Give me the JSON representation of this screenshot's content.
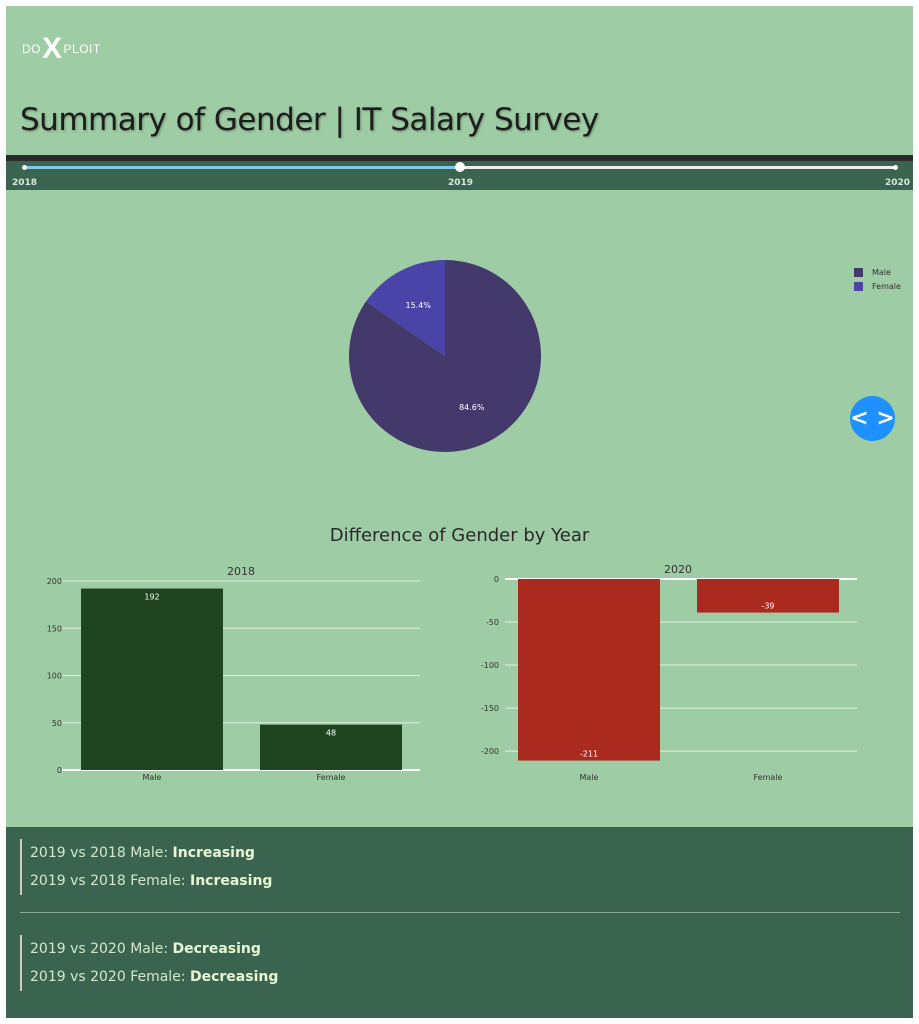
{
  "logo": {
    "left": "DO",
    "mid": "X",
    "right": "PLOIT"
  },
  "title": "Summary of Gender | IT Salary Survey",
  "slider": {
    "ticks": [
      "2018",
      "2019",
      "2020"
    ],
    "selected": "2019"
  },
  "nav_button": {
    "icon": "code-chevrons-icon",
    "label": "< >"
  },
  "subtitle": "Difference of Gender by Year",
  "colors": {
    "male": "#433a6b",
    "female": "#4b44a8",
    "increase": "#1f4420",
    "decrease": "#ab2a1f",
    "background": "#9ecca4",
    "panel": "#3a6450"
  },
  "chart_data": [
    {
      "type": "pie",
      "labels": [
        "Male",
        "Female"
      ],
      "values": [
        84.6,
        15.4
      ],
      "value_labels": [
        "84.6%",
        "15.4%"
      ],
      "legend": [
        "Male",
        "Female"
      ],
      "legend_placement": "top-right"
    },
    {
      "type": "bar",
      "title": "2018",
      "categories": [
        "Male",
        "Female"
      ],
      "values": [
        192,
        48
      ],
      "value_labels": [
        "192",
        "48"
      ],
      "ylim": [
        0,
        200
      ],
      "yticks": [
        "0",
        "50",
        "100",
        "150",
        "200"
      ],
      "grid": true
    },
    {
      "type": "bar",
      "title": "2020",
      "categories": [
        "Male",
        "Female"
      ],
      "values": [
        -211,
        -39
      ],
      "value_labels": [
        "-211",
        "-39"
      ],
      "ylim": [
        -215,
        0
      ],
      "yticks": [
        "0",
        "-50",
        "-100",
        "-150",
        "-200"
      ],
      "grid": true
    }
  ],
  "summary": [
    [
      {
        "label": "2019 vs 2018 Male: ",
        "value": "Increasing"
      },
      {
        "label": "2019 vs 2018 Female: ",
        "value": "Increasing"
      }
    ],
    [
      {
        "label": "2019 vs 2020 Male: ",
        "value": "Decreasing"
      },
      {
        "label": "2019 vs 2020 Female: ",
        "value": "Decreasing"
      }
    ]
  ]
}
